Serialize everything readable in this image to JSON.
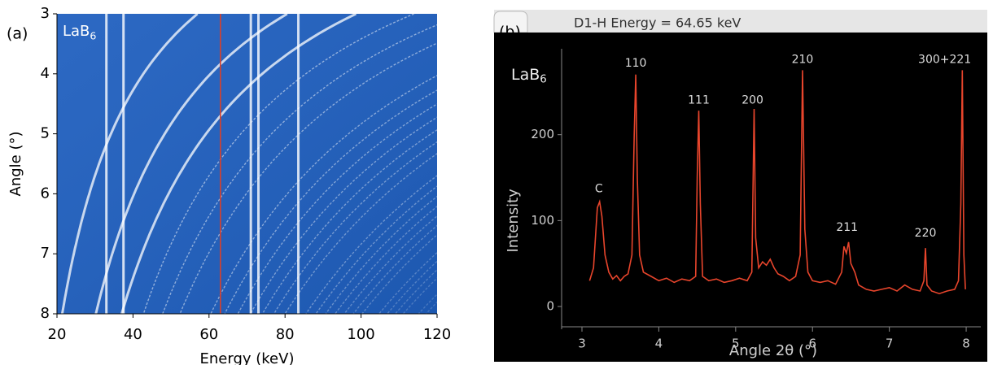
{
  "chart_data": [
    {
      "type": "image",
      "panel_label": "(a)",
      "inset_label": {
        "text": "LaB",
        "subscript": "6"
      },
      "xlabel": "Energy (keV)",
      "ylabel": "Angle (°)",
      "xlim": [
        20,
        120
      ],
      "ylim": [
        8,
        3
      ],
      "xticks": [
        20,
        40,
        60,
        80,
        100,
        120
      ],
      "yticks": [
        3,
        4,
        5,
        6,
        7,
        8
      ],
      "background": "#1f5fbf",
      "marker": {
        "x": 63,
        "color": "#d9402a"
      },
      "vertical_lines": [
        33,
        37.5,
        71,
        73,
        83.5
      ]
    },
    {
      "type": "line",
      "panel_label": "(b)",
      "header": "D1-H Energy = 64.65 keV",
      "inset_label": {
        "text": "LaB",
        "subscript": "6"
      },
      "xlabel": "Angle 2θ (°)",
      "ylabel": "Intensity",
      "xlim": [
        2.8,
        8.19
      ],
      "ylim": [
        -17,
        300
      ],
      "xticks": [
        3,
        4,
        5,
        6,
        7,
        8
      ],
      "yticks": [
        0,
        100,
        200
      ],
      "series": [
        {
          "color": "#e8452c",
          "x": [
            3.1,
            3.15,
            3.2,
            3.23,
            3.26,
            3.3,
            3.35,
            3.4,
            3.45,
            3.5,
            3.55,
            3.6,
            3.65,
            3.68,
            3.7,
            3.72,
            3.75,
            3.8,
            3.9,
            4.0,
            4.1,
            4.2,
            4.3,
            4.4,
            4.48,
            4.5,
            4.52,
            4.54,
            4.57,
            4.65,
            4.75,
            4.85,
            4.95,
            5.05,
            5.15,
            5.21,
            5.24,
            5.26,
            5.3,
            5.35,
            5.4,
            5.45,
            5.5,
            5.55,
            5.62,
            5.7,
            5.78,
            5.84,
            5.87,
            5.9,
            5.94,
            6.0,
            6.1,
            6.2,
            6.3,
            6.38,
            6.41,
            6.44,
            6.47,
            6.5,
            6.55,
            6.6,
            6.7,
            6.8,
            6.9,
            7.0,
            7.1,
            7.2,
            7.3,
            7.4,
            7.45,
            7.47,
            7.49,
            7.55,
            7.65,
            7.75,
            7.85,
            7.9,
            7.93,
            7.95,
            7.97,
            7.99
          ],
          "values": [
            30,
            45,
            115,
            122,
            105,
            60,
            40,
            32,
            36,
            30,
            35,
            38,
            60,
            200,
            270,
            150,
            60,
            40,
            35,
            30,
            33,
            28,
            32,
            30,
            35,
            150,
            228,
            120,
            35,
            30,
            32,
            28,
            30,
            33,
            30,
            40,
            230,
            80,
            45,
            52,
            48,
            55,
            45,
            38,
            35,
            30,
            35,
            60,
            275,
            90,
            40,
            30,
            28,
            30,
            26,
            40,
            70,
            62,
            75,
            50,
            40,
            25,
            20,
            18,
            20,
            22,
            18,
            25,
            20,
            18,
            30,
            68,
            25,
            18,
            15,
            18,
            20,
            30,
            120,
            275,
            60,
            20
          ]
        }
      ],
      "annotations": [
        {
          "text": "C",
          "x": 3.22,
          "y": 137
        },
        {
          "text": "110",
          "x": 3.7,
          "y": 283
        },
        {
          "text": "111",
          "x": 4.52,
          "y": 240
        },
        {
          "text": "200",
          "x": 5.22,
          "y": 240
        },
        {
          "text": "210",
          "x": 5.87,
          "y": 287
        },
        {
          "text": "211",
          "x": 6.45,
          "y": 92
        },
        {
          "text": "220",
          "x": 7.47,
          "y": 85
        },
        {
          "text": "300+221",
          "x": 7.72,
          "y": 287
        }
      ]
    }
  ]
}
